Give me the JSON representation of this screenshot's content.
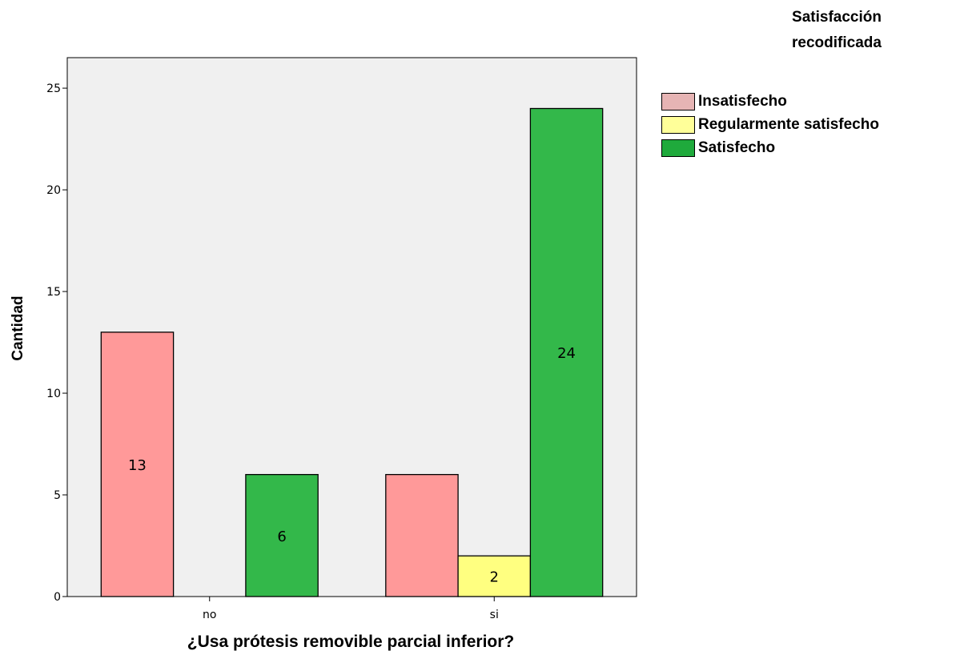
{
  "chart_data": {
    "type": "bar",
    "categories": [
      "no",
      "si"
    ],
    "series": [
      {
        "name": "Insatisfecho",
        "values": [
          13,
          6
        ],
        "color": "#ff9999"
      },
      {
        "name": "Regularmente satisfecho",
        "values": [
          0,
          2
        ],
        "color": "#ffff80"
      },
      {
        "name": "Satisfecho",
        "values": [
          6,
          24
        ],
        "color": "#33b84a"
      }
    ],
    "data_labels": [
      [
        "13",
        ""
      ],
      [
        "",
        "2"
      ],
      [
        "6",
        "24"
      ]
    ],
    "title": "",
    "xlabel": "¿Usa prótesis removible parcial inferior?",
    "ylabel": "Cantidad",
    "ylim": [
      0,
      26.5
    ],
    "yticks": [
      0,
      5,
      10,
      15,
      20,
      25
    ],
    "legend": {
      "title": "Satisfacción recodificada",
      "position": "top-right"
    },
    "legend_colors": [
      "#e6b4b4",
      "#ffff99",
      "#1faa3c"
    ],
    "plot_background": "#f0f0f0",
    "grid": false
  }
}
